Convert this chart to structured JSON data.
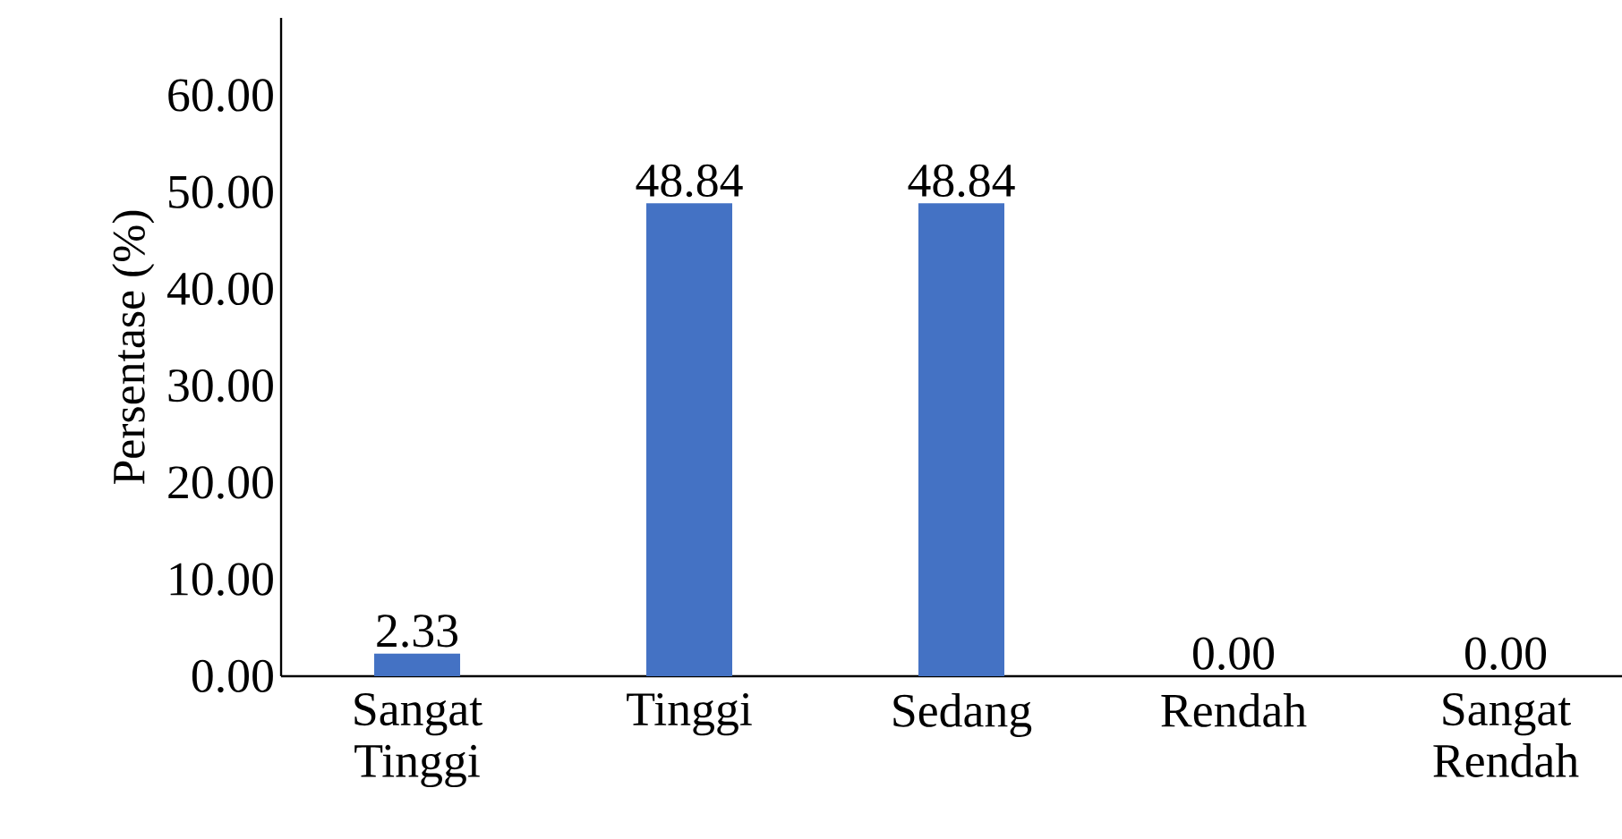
{
  "chart_data": {
    "type": "bar",
    "ylabel": "Persentase (%)",
    "categories": [
      "Sangat Tinggi",
      "Tinggi",
      "Sedang",
      "Rendah",
      "Sangat Rendah"
    ],
    "values": [
      2.33,
      48.84,
      48.84,
      0,
      0
    ],
    "value_labels": [
      "2.33",
      "48.84",
      "48.84",
      "0.00",
      "0.00"
    ],
    "color": "#4472c4",
    "ylim": [
      0,
      68
    ],
    "yticks": [
      {
        "value": 0,
        "label": "0.00"
      },
      {
        "value": 10,
        "label": "10.00"
      },
      {
        "value": 20,
        "label": "20.00"
      },
      {
        "value": 30,
        "label": "30.00"
      },
      {
        "value": 40,
        "label": "40.00"
      },
      {
        "value": 50,
        "label": "50.00"
      },
      {
        "value": 60,
        "label": "60.00"
      }
    ],
    "grid": false
  }
}
